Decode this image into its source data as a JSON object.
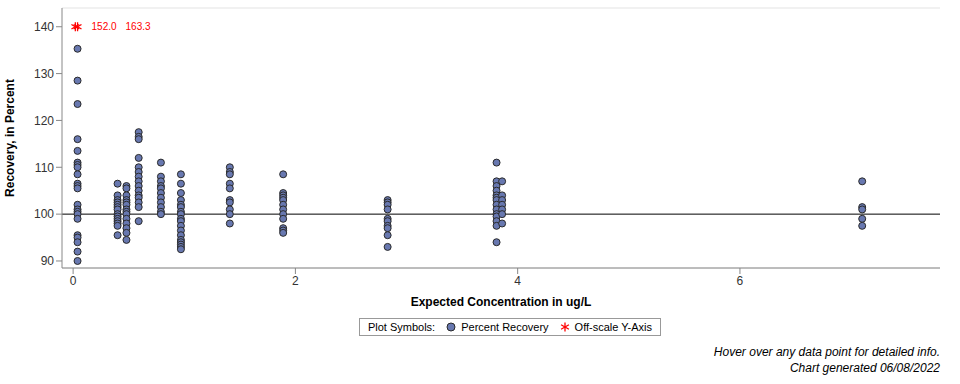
{
  "chart_data": {
    "type": "scatter",
    "x_label": "Expected Concentration in ug/L",
    "y_label": "Recovery, in Percent",
    "xlim": [
      -0.1,
      7.8
    ],
    "xticks": [
      0,
      2,
      4,
      6
    ],
    "ylim": [
      88.5,
      144
    ],
    "yticks": [
      90,
      100,
      110,
      120,
      130,
      140
    ],
    "grid": true,
    "reference_line": 100,
    "legend_title": "Plot Symbols:",
    "series": [
      {
        "name": "Percent Recovery",
        "color": "#6878b0",
        "marker": "circle",
        "x": [
          0.04,
          0.04,
          0.04,
          0.04,
          0.04,
          0.04,
          0.04,
          0.04,
          0.04,
          0.04,
          0.04,
          0.04,
          0.04,
          0.04,
          0.04,
          0.04,
          0.04,
          0.04,
          0.04,
          0.04,
          0.04,
          0.04,
          0.4,
          0.4,
          0.4,
          0.4,
          0.4,
          0.4,
          0.4,
          0.4,
          0.4,
          0.4,
          0.4,
          0.4,
          0.4,
          0.4,
          0.48,
          0.48,
          0.48,
          0.48,
          0.48,
          0.48,
          0.48,
          0.48,
          0.48,
          0.48,
          0.48,
          0.48,
          0.48,
          0.48,
          0.59,
          0.59,
          0.59,
          0.59,
          0.59,
          0.59,
          0.59,
          0.59,
          0.59,
          0.59,
          0.59,
          0.59,
          0.59,
          0.59,
          0.59,
          0.79,
          0.79,
          0.79,
          0.79,
          0.79,
          0.79,
          0.79,
          0.79,
          0.79,
          0.79,
          0.79,
          0.97,
          0.97,
          0.97,
          0.97,
          0.97,
          0.97,
          0.97,
          0.97,
          0.97,
          0.97,
          0.97,
          0.97,
          0.97,
          0.97,
          0.97,
          0.97,
          0.97,
          0.97,
          1.41,
          1.41,
          1.41,
          1.41,
          1.41,
          1.41,
          1.41,
          1.41,
          1.41,
          1.41,
          1.89,
          1.89,
          1.89,
          1.89,
          1.89,
          1.89,
          1.89,
          1.89,
          1.89,
          1.89,
          1.89,
          1.89,
          2.83,
          2.83,
          2.83,
          2.83,
          2.83,
          2.83,
          2.83,
          2.83,
          2.83,
          2.83,
          3.81,
          3.81,
          3.81,
          3.81,
          3.81,
          3.81,
          3.81,
          3.81,
          3.81,
          3.81,
          3.81,
          3.81,
          3.81,
          3.81,
          3.86,
          3.86,
          3.86,
          3.86,
          3.86,
          3.86,
          3.86,
          7.1,
          7.1,
          7.1,
          7.1,
          7.1
        ],
        "values": [
          135.3,
          128.5,
          123.5,
          116,
          113.5,
          111,
          110.5,
          110,
          108.5,
          106.5,
          106,
          105.5,
          102,
          101,
          100.5,
          100,
          99,
          95.5,
          95,
          94,
          92,
          90,
          106.5,
          104,
          103,
          102.5,
          102,
          101.5,
          101,
          100,
          99.5,
          99,
          98.5,
          98,
          97.5,
          95.5,
          106,
          105.5,
          104,
          103,
          102.5,
          102,
          101,
          100.5,
          100,
          99,
          98,
          97,
          96,
          94.5,
          117.5,
          116.5,
          116,
          112,
          110,
          109,
          108,
          107,
          106,
          105,
          104,
          103.5,
          102.5,
          101.5,
          98.5,
          111,
          108,
          107,
          106,
          105.5,
          104.5,
          103.5,
          102.5,
          101.5,
          100.5,
          100,
          108.5,
          106.5,
          104.5,
          103,
          102,
          101.5,
          100.5,
          100,
          99,
          98.5,
          97.5,
          96.5,
          95.5,
          94.5,
          94,
          93.5,
          93,
          92.5,
          110,
          109,
          108.5,
          106.5,
          105.5,
          103,
          102.5,
          101,
          100,
          98,
          108.5,
          104.5,
          104,
          103.5,
          103,
          102,
          101,
          100,
          99,
          97,
          96.5,
          96,
          103,
          102.5,
          102,
          101,
          99,
          98.5,
          97.5,
          97,
          95.5,
          93,
          111,
          107,
          106,
          105,
          104,
          103.5,
          103,
          102,
          101,
          100,
          99.5,
          98.5,
          97.5,
          94,
          107,
          104,
          103,
          102,
          101,
          100,
          98,
          107,
          101.5,
          101,
          99,
          97.5
        ]
      },
      {
        "name": "Off-scale Y-Axis",
        "color": "#ff0000",
        "marker": "asterisk",
        "x": [
          0.02,
          0.04
        ],
        "values": [
          140,
          140
        ]
      }
    ],
    "annotations": [
      {
        "x": 0.04,
        "y": 140,
        "text": "152.0"
      },
      {
        "x": 0.04,
        "y": 140,
        "text": "163.3"
      }
    ],
    "notes": [
      "Hover over any data point for detailed info.",
      "Chart generated 06/08/2022"
    ]
  }
}
